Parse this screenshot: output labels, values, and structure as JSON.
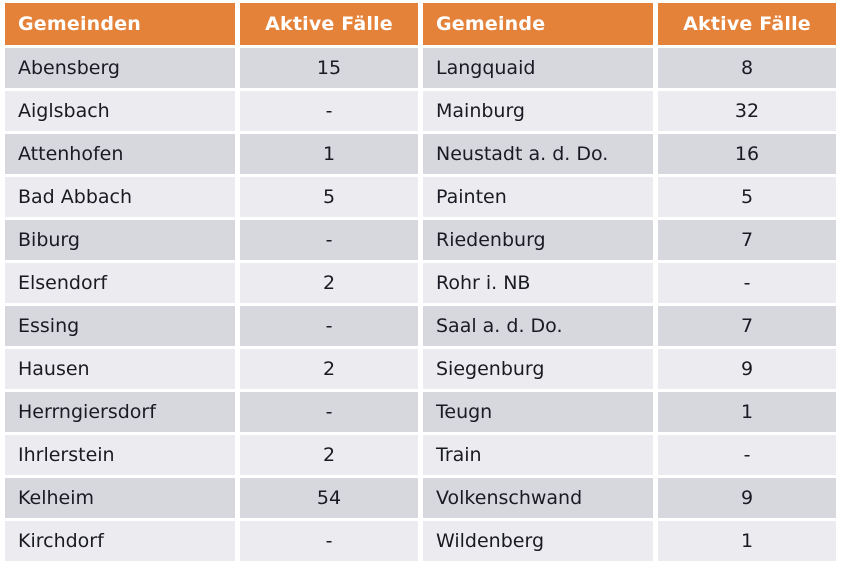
{
  "table": {
    "headers": [
      "Gemeinden",
      "Aktive Fälle",
      "Gemeinde",
      "Aktive Fälle"
    ],
    "rows": [
      [
        "Abensberg",
        "15",
        "Langquaid",
        "8"
      ],
      [
        "Aiglsbach",
        "-",
        "Mainburg",
        "32"
      ],
      [
        "Attenhofen",
        "1",
        "Neustadt a. d. Do.",
        "16"
      ],
      [
        "Bad Abbach",
        "5",
        "Painten",
        "5"
      ],
      [
        "Biburg",
        "-",
        "Riedenburg",
        "7"
      ],
      [
        "Elsendorf",
        "2",
        "Rohr i. NB",
        "-"
      ],
      [
        "Essing",
        "-",
        "Saal a. d. Do.",
        "7"
      ],
      [
        "Hausen",
        "2",
        "Siegenburg",
        "9"
      ],
      [
        "Herrngiersdorf",
        "-",
        "Teugn",
        "1"
      ],
      [
        "Ihrlerstein",
        "2",
        "Train",
        "-"
      ],
      [
        "Kelheim",
        "54",
        "Volkenschwand",
        "9"
      ],
      [
        "Kirchdorf",
        "-",
        "Wildenberg",
        "1"
      ]
    ]
  },
  "colors": {
    "header_background": "#e5823a",
    "header_text": "#ffffff",
    "row_dark": "#d7d7de",
    "row_light": "#ebebf0",
    "body_text": "#1a1a22",
    "gap": "#ffffff"
  }
}
